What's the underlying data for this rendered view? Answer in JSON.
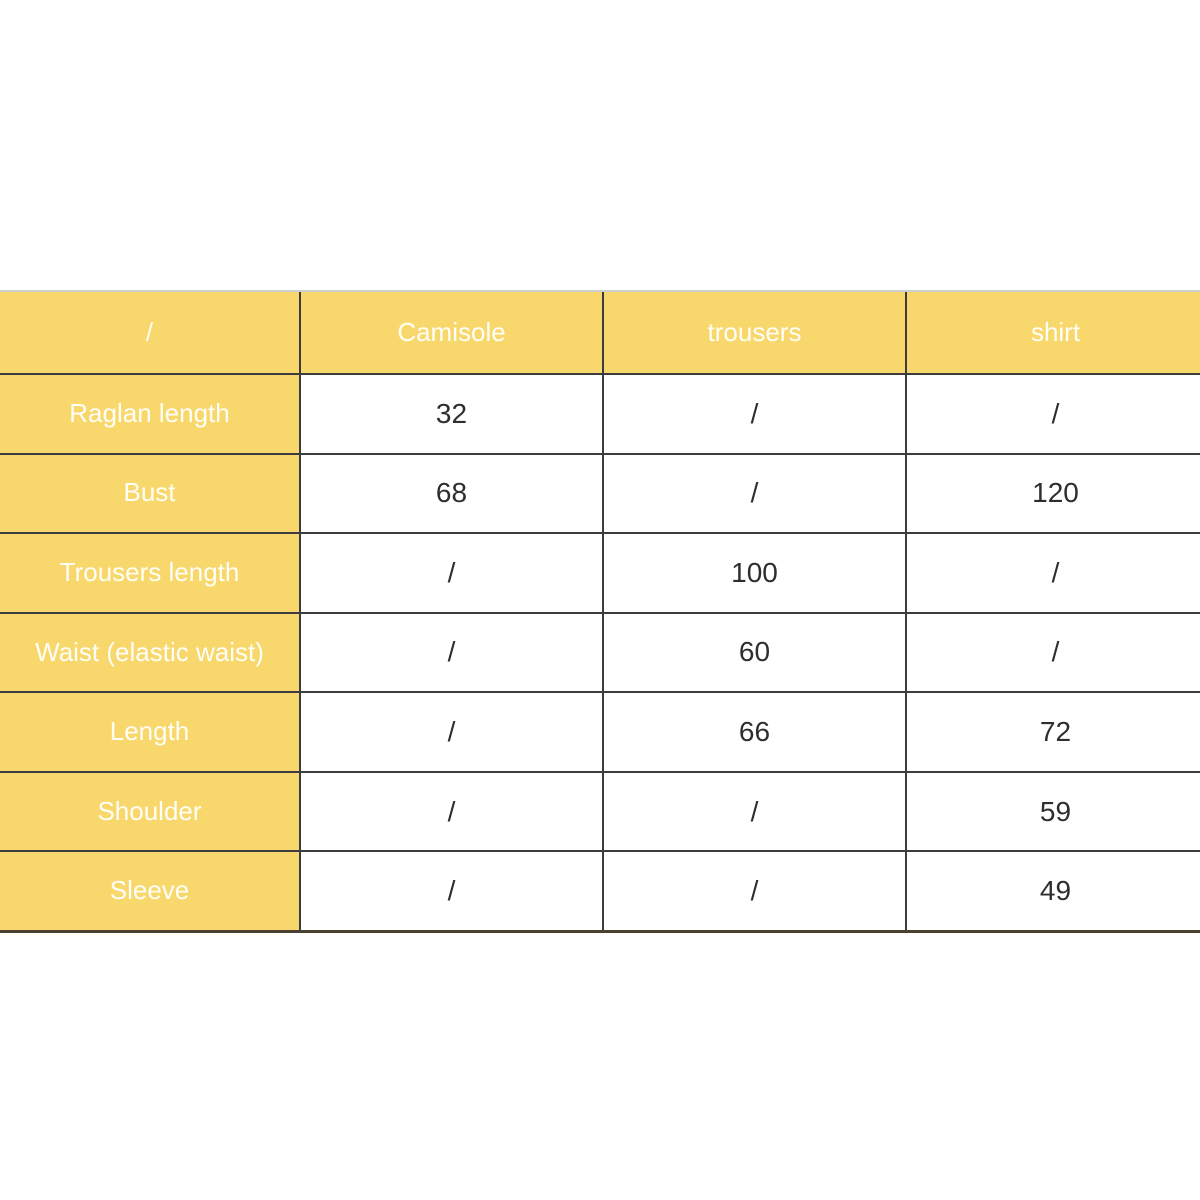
{
  "colors": {
    "accent_yellow": "#F8D76C",
    "grid_line": "#3C3C3C",
    "header_text": "#FFFEF7",
    "value_text": "#2E2E2E",
    "page_background": "#FFFFFF"
  },
  "table": {
    "columns": [
      "/",
      "Camisole",
      "trousers",
      "shirt"
    ],
    "rows": [
      {
        "label": "Raglan length",
        "values": [
          "32",
          "/",
          "/"
        ]
      },
      {
        "label": "Bust",
        "values": [
          "68",
          "/",
          "120"
        ]
      },
      {
        "label": "Trousers length",
        "values": [
          "/",
          "100",
          "/"
        ]
      },
      {
        "label": "Waist (elastic waist)",
        "values": [
          "/",
          "60",
          "/"
        ]
      },
      {
        "label": "Length",
        "values": [
          "/",
          "66",
          "72"
        ]
      },
      {
        "label": "Shoulder",
        "values": [
          "/",
          "/",
          "59"
        ]
      },
      {
        "label": "Sleeve",
        "values": [
          "/",
          "/",
          "49"
        ]
      }
    ]
  },
  "chart_data": {
    "type": "table",
    "title": "",
    "columns": [
      "/",
      "Camisole",
      "trousers",
      "shirt"
    ],
    "rows": [
      [
        "Raglan length",
        "32",
        "/",
        "/"
      ],
      [
        "Bust",
        "68",
        "/",
        "120"
      ],
      [
        "Trousers length",
        "/",
        "100",
        "/"
      ],
      [
        "Waist (elastic waist)",
        "/",
        "60",
        "/"
      ],
      [
        "Length",
        "/",
        "66",
        "72"
      ],
      [
        "Shoulder",
        "/",
        "/",
        "59"
      ],
      [
        "Sleeve",
        "/",
        "/",
        "49"
      ]
    ]
  }
}
